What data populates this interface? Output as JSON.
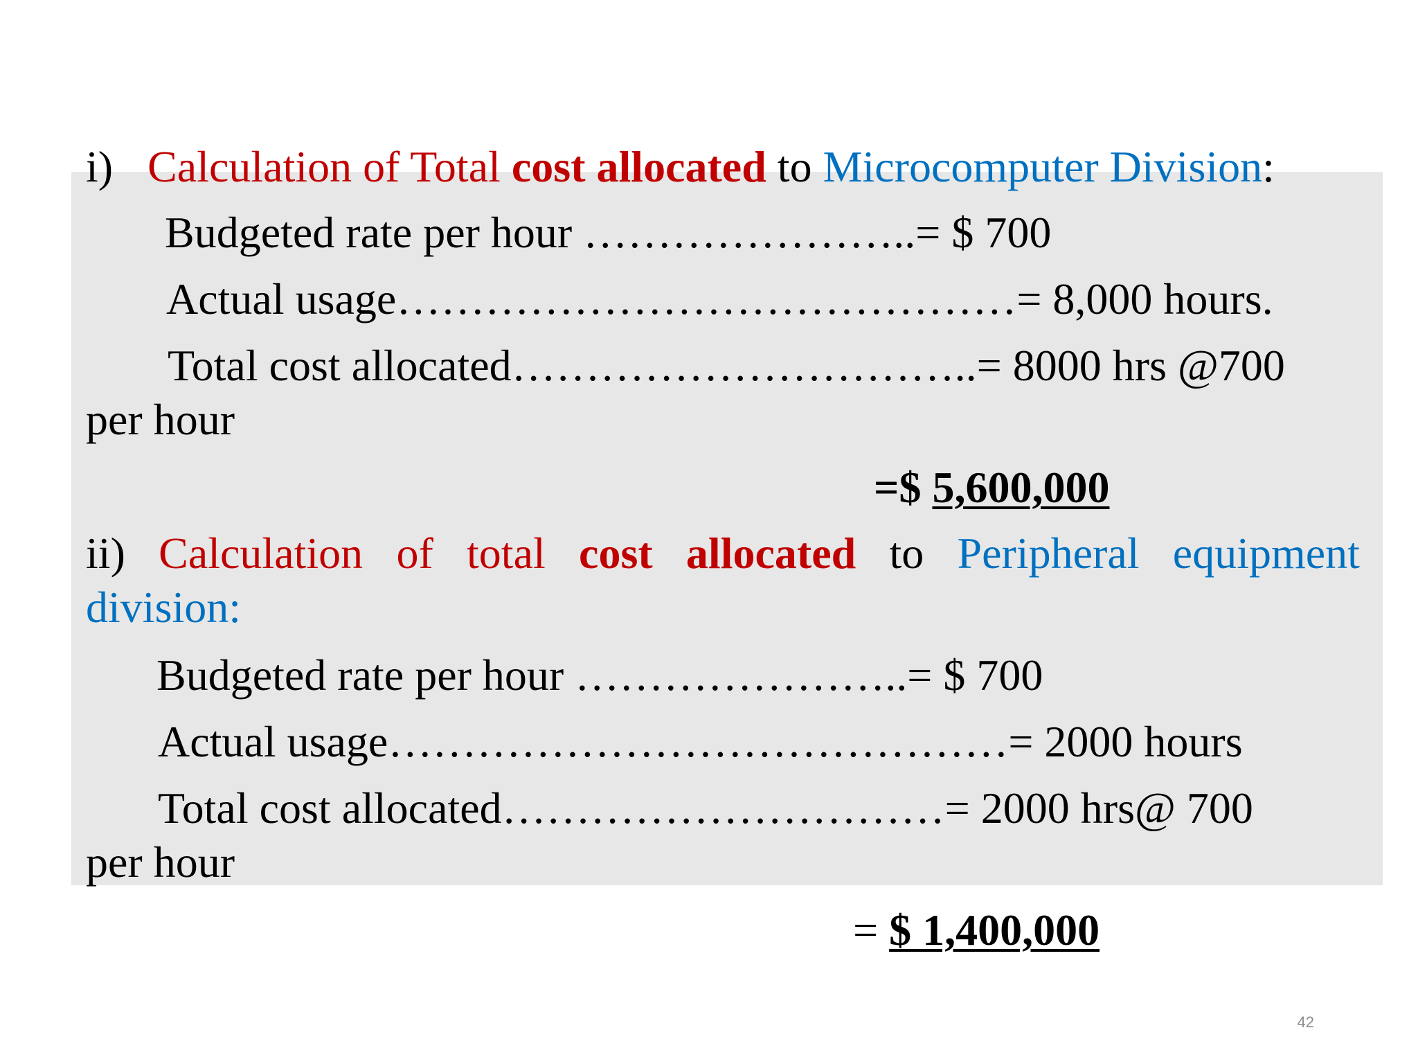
{
  "section_i": {
    "marker": "i)",
    "heading_part1": "Calculation of Total",
    "heading_bold": "cost allocated",
    "heading_to": "to",
    "heading_division": "Microcomputer Division",
    "heading_colon": ":",
    "rate_line": "Budgeted rate per hour …………………..= $ 700",
    "usage_line": "Actual usage……………………………………= 8,000 hours.",
    "total_line": "Total cost allocated…………………………..= 8000 hrs @700",
    "total_wrap": "per hour",
    "result_prefix": "=$",
    "result_value": "5,600,000"
  },
  "section_ii": {
    "marker": "ii)",
    "heading_w1": "Calculation",
    "heading_w2": "of",
    "heading_w3": "total",
    "heading_w4": "cost",
    "heading_w5": "allocated",
    "heading_w6": "to",
    "heading_w7": "Peripheral",
    "heading_w8": "equipment",
    "heading_wrap": "division:",
    "rate_line": "Budgeted rate per hour …………………..= $ 700",
    "usage_line": "Actual usage……………………………………=   2000 hours",
    "total_line": "Total cost allocated…………………………= 2000 hrs@ 700",
    "total_wrap": "per hour",
    "result_prefix": "=",
    "result_value": "$ 1,400,000"
  },
  "footer": {
    "page_number": "42"
  },
  "colors": {
    "accent_red": "#c00000",
    "accent_blue": "#0070c0",
    "panel_gray": "#e7e7e7"
  }
}
